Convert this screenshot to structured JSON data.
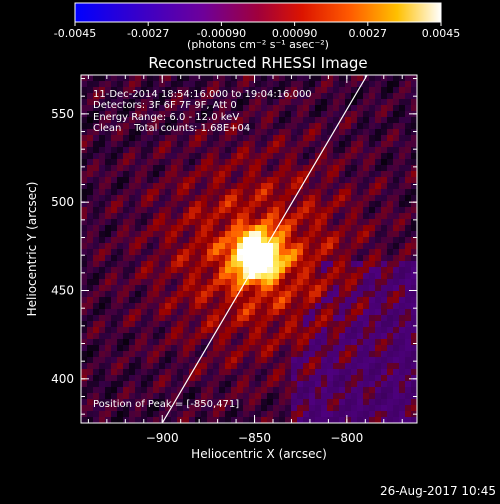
{
  "colorbar": {
    "ticks": [
      "-0.0045",
      "-0.0027",
      "-0.00090",
      "0.00090",
      "0.0027",
      "0.0045"
    ],
    "unit_label": "(photons cm⁻² s⁻¹ asec⁻²)"
  },
  "footer": {
    "timestamp": "26-Aug-2017 10:45"
  },
  "chart_data": {
    "type": "heatmap",
    "title": "Reconstructed RHESSI Image",
    "xlabel": "Heliocentric X (arcsec)",
    "ylabel": "Heliocentric Y (arcsec)",
    "xlim": [
      -944,
      -762
    ],
    "ylim": [
      375,
      572
    ],
    "xticks": [
      {
        "value": -900,
        "label": "−900"
      },
      {
        "value": -850,
        "label": "−850"
      },
      {
        "value": -800,
        "label": "−800"
      }
    ],
    "yticks": [
      {
        "value": 400,
        "label": "400"
      },
      {
        "value": 450,
        "label": "450"
      },
      {
        "value": 500,
        "label": "500"
      },
      {
        "value": 550,
        "label": "550"
      }
    ],
    "colormap": "rhessi-blue-purple-red-yellow-white",
    "clim": [
      -0.0045,
      0.0045
    ],
    "peak": [
      -850,
      471
    ],
    "info_lines": [
      "11-Dec-2014 18:54:16.000 to 19:04:16.000",
      "Detectors: 3F 6F 7F 9F, Att 0",
      "Energy Range: 6.0 - 12.0 keV",
      "Clean    Total counts: 1.68E+04"
    ],
    "peak_label": "Position of Peak = [-850,471]",
    "limb_line": {
      "x": [
        -900,
        -789
      ],
      "y": [
        375,
        572
      ]
    }
  }
}
